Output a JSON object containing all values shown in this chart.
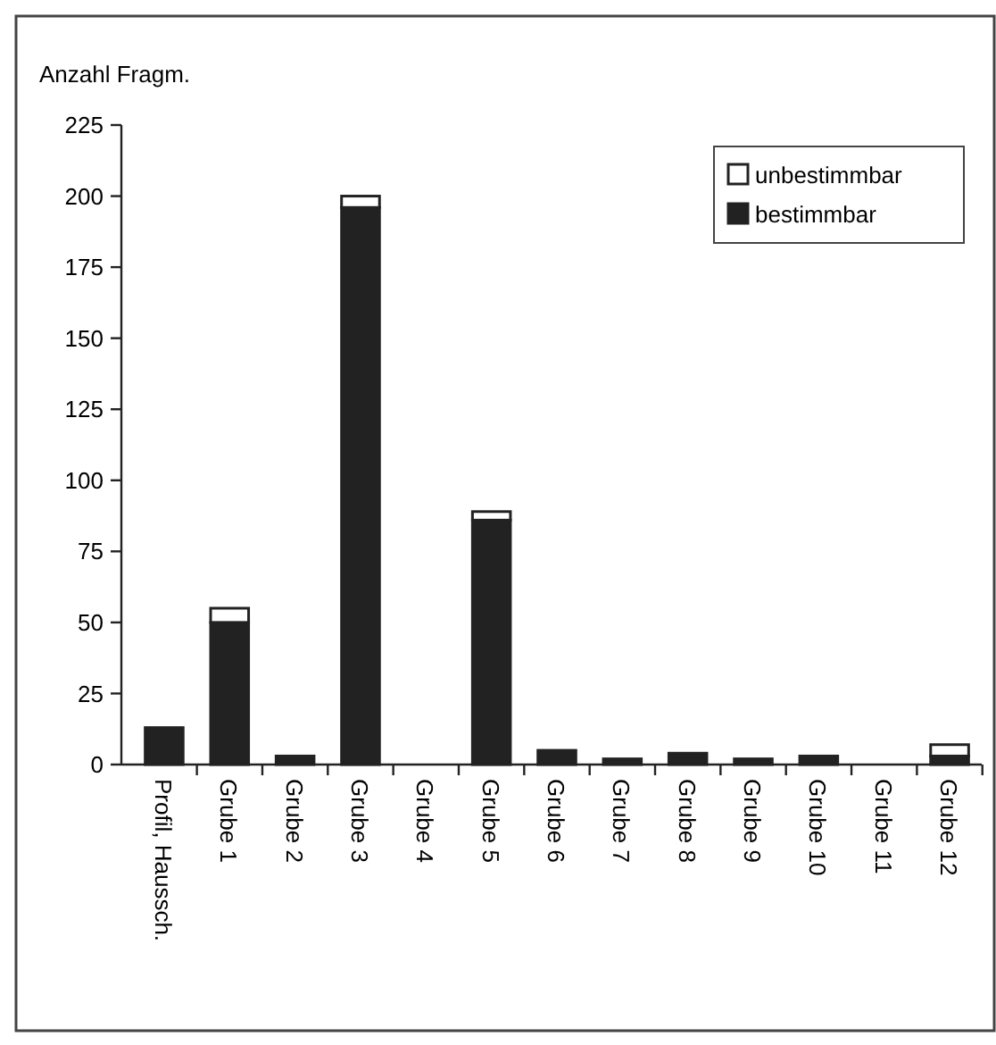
{
  "chart_data": {
    "type": "bar",
    "stacked": true,
    "ylabel": "Anzahl Fragm.",
    "categories": [
      "Profil, Haussch.",
      "Grube 1",
      "Grube 2",
      "Grube 3",
      "Grube 4",
      "Grube 5",
      "Grube 6",
      "Grube 7",
      "Grube 8",
      "Grube 9",
      "Grube 10",
      "Grube 11",
      "Grube 12"
    ],
    "series": [
      {
        "name": "bestimmbar",
        "color": "#222222",
        "values": [
          13,
          50,
          3,
          196,
          0,
          86,
          5,
          2,
          4,
          2,
          3,
          0,
          3
        ]
      },
      {
        "name": "unbestimmbar",
        "color": "#ffffff",
        "values": [
          0,
          5,
          0,
          4,
          0,
          3,
          0,
          0,
          0,
          0,
          0,
          0,
          4
        ]
      }
    ],
    "ylim": [
      0,
      225
    ],
    "yticks": [
      0,
      25,
      50,
      75,
      100,
      125,
      150,
      175,
      200,
      225
    ],
    "grid": false,
    "legend": "top right"
  }
}
